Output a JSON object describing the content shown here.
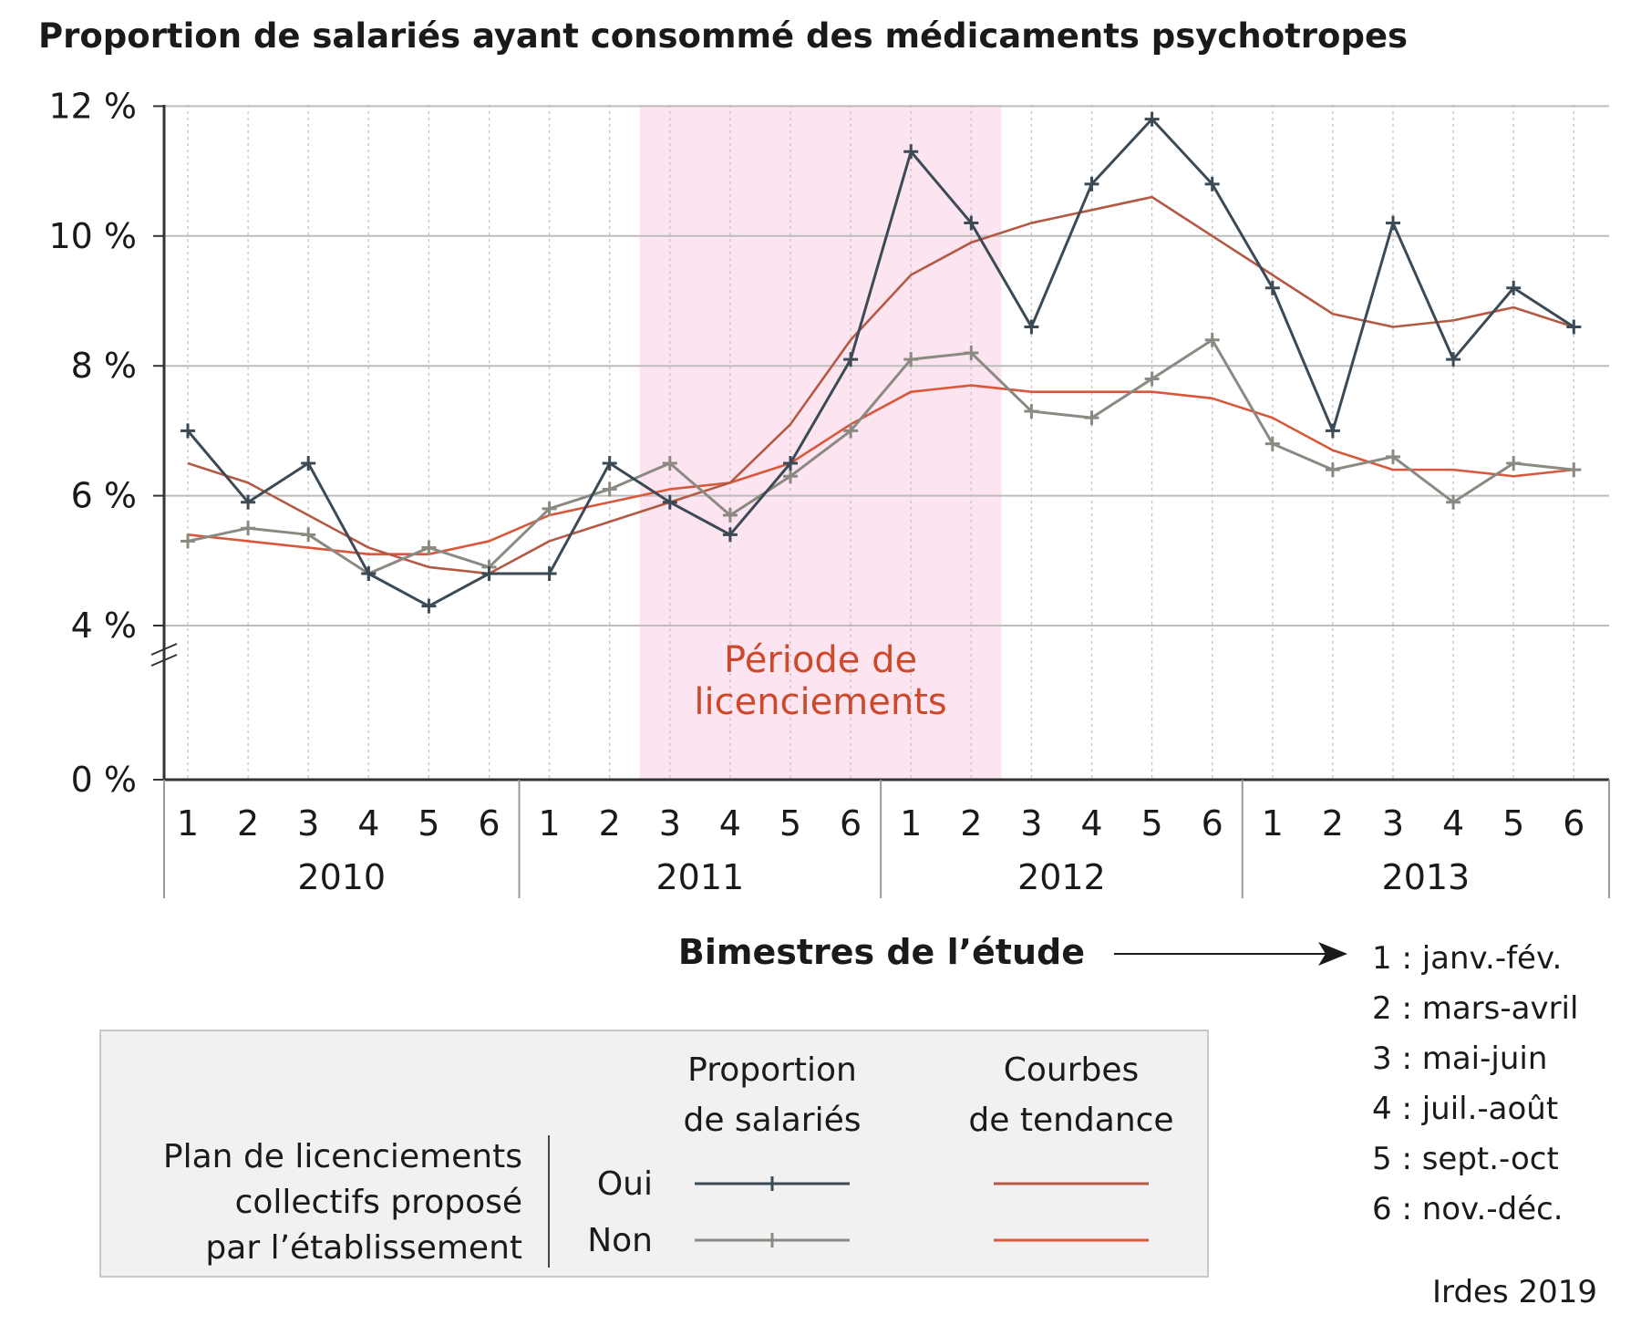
{
  "chart_data": {
    "type": "line",
    "title": "Proportion de salariés ayant consommé des médicaments psychotropes",
    "xlabel": "Bimestres de l’étude",
    "ylabel": "",
    "ylim": [
      0,
      12
    ],
    "y_ticks": [
      {
        "value": 0,
        "label": "0 %"
      },
      {
        "value": 4,
        "label": "4 %"
      },
      {
        "value": 6,
        "label": "6 %"
      },
      {
        "value": 8,
        "label": "8 %"
      },
      {
        "value": 10,
        "label": "10 %"
      },
      {
        "value": 12,
        "label": "12 %"
      }
    ],
    "axis_break": "between 0 % and 4 %",
    "grid": true,
    "bimester_labels": [
      "1",
      "2",
      "3",
      "4",
      "5",
      "6",
      "1",
      "2",
      "3",
      "4",
      "5",
      "6",
      "1",
      "2",
      "3",
      "4",
      "5",
      "6",
      "1",
      "2",
      "3",
      "4",
      "5",
      "6"
    ],
    "years": [
      "2010",
      "2011",
      "2012",
      "2013"
    ],
    "shaded_region": {
      "from_index": 7.5,
      "to_index": 13.5,
      "label_lines": [
        "Période de",
        "licenciements"
      ],
      "color": "#fce4f0"
    },
    "series": [
      {
        "legend_row": "Oui",
        "legend_column": "Proportion de salariés",
        "color": "#3b4a55",
        "markers": true,
        "values": [
          7.0,
          5.9,
          6.5,
          4.8,
          4.3,
          4.8,
          4.8,
          6.5,
          5.9,
          5.4,
          6.5,
          8.1,
          11.3,
          10.2,
          8.6,
          10.8,
          11.8,
          10.8,
          9.2,
          7.0,
          10.2,
          8.1,
          9.2,
          8.6
        ]
      },
      {
        "legend_row": "Non",
        "legend_column": "Proportion de salariés",
        "color": "#8a8a82",
        "markers": true,
        "values": [
          5.3,
          5.5,
          5.4,
          4.8,
          5.2,
          4.9,
          5.8,
          6.1,
          6.5,
          5.7,
          6.3,
          7.0,
          8.1,
          8.2,
          7.3,
          7.2,
          7.8,
          8.4,
          6.8,
          6.4,
          6.6,
          5.9,
          6.5,
          6.4
        ]
      },
      {
        "legend_row": "Oui",
        "legend_column": "Courbes de tendance",
        "color": "#b35a44",
        "markers": false,
        "values": [
          6.5,
          6.2,
          5.7,
          5.2,
          4.9,
          4.8,
          5.3,
          5.6,
          5.9,
          6.2,
          7.1,
          8.4,
          9.4,
          9.9,
          10.2,
          10.4,
          10.6,
          10.0,
          9.4,
          8.8,
          8.6,
          8.7,
          8.9,
          8.6
        ]
      },
      {
        "legend_row": "Non",
        "legend_column": "Courbes de tendance",
        "color": "#d9573a",
        "markers": false,
        "values": [
          5.4,
          5.3,
          5.2,
          5.1,
          5.1,
          5.3,
          5.7,
          5.9,
          6.1,
          6.2,
          6.5,
          7.1,
          7.6,
          7.7,
          7.6,
          7.6,
          7.6,
          7.5,
          7.2,
          6.7,
          6.4,
          6.4,
          6.3,
          6.4
        ]
      }
    ],
    "legend": {
      "row_title_lines": [
        "Plan de licenciements",
        "collectifs proposé",
        "par l’établissement"
      ],
      "rows": [
        "Oui",
        "Non"
      ],
      "column_headers": [
        [
          "Proportion",
          "de salariés"
        ],
        [
          "Courbes",
          "de tendance"
        ]
      ],
      "placement": "bottom-left",
      "background": "#f2f0f0"
    },
    "bimester_key": [
      "1 : janv.-fév.",
      "2 : mars-avril",
      "3 : mai-juin",
      "4 : juil.-août",
      "5 : sept.-oct",
      "6 : nov.-déc."
    ],
    "source": "Irdes 2019"
  }
}
